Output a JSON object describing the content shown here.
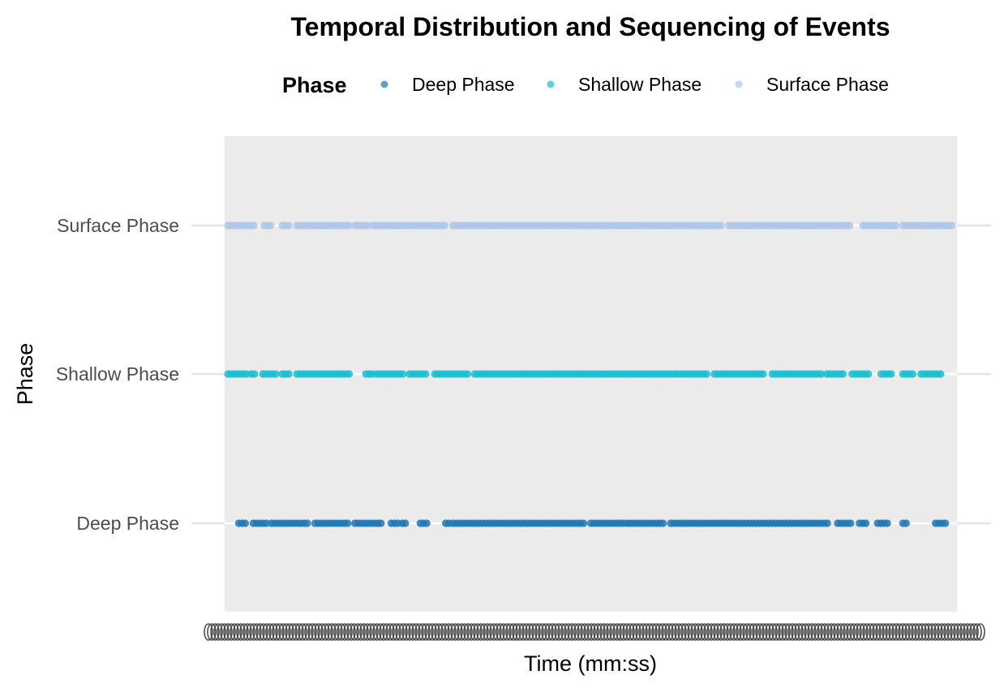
{
  "chart_data": {
    "type": "scatter",
    "title": "Temporal Distribution and Sequencing of Events",
    "xlabel": "Time (mm:ss)",
    "ylabel": "Phase",
    "legend": {
      "title": "Phase",
      "position": "top",
      "entries": [
        "Deep Phase",
        "Shallow Phase",
        "Surface Phase"
      ]
    },
    "categories": [
      "Deep Phase",
      "Shallow Phase",
      "Surface Phase"
    ],
    "x_domain": [
      0,
      1
    ],
    "x_ticks_note": "tick labels overplotted and illegible",
    "grid": "horizontal major lines",
    "series": [
      {
        "name": "Deep Phase",
        "color": "#1f77b4",
        "category": "Deep Phase",
        "runs": [
          [
            0.015,
            0.028
          ],
          [
            0.035,
            0.055
          ],
          [
            0.06,
            0.11
          ],
          [
            0.12,
            0.165
          ],
          [
            0.175,
            0.215
          ],
          [
            0.225,
            0.235
          ],
          [
            0.24,
            0.245
          ],
          [
            0.265,
            0.275
          ],
          [
            0.3,
            0.305
          ],
          [
            0.31,
            0.49
          ],
          [
            0.5,
            0.545
          ],
          [
            0.55,
            0.6
          ],
          [
            0.61,
            0.83
          ],
          [
            0.84,
            0.86
          ],
          [
            0.87,
            0.88
          ],
          [
            0.895,
            0.91
          ],
          [
            0.93,
            0.935
          ],
          [
            0.975,
            0.99
          ]
        ]
      },
      {
        "name": "Shallow Phase",
        "color": "#17becf",
        "category": "Shallow Phase",
        "runs": [
          [
            0.0,
            0.01
          ],
          [
            0.012,
            0.028
          ],
          [
            0.032,
            0.04
          ],
          [
            0.048,
            0.068
          ],
          [
            0.075,
            0.085
          ],
          [
            0.095,
            0.17
          ],
          [
            0.19,
            0.2
          ],
          [
            0.205,
            0.245
          ],
          [
            0.25,
            0.275
          ],
          [
            0.285,
            0.33
          ],
          [
            0.34,
            0.66
          ],
          [
            0.67,
            0.74
          ],
          [
            0.75,
            0.82
          ],
          [
            0.825,
            0.85
          ],
          [
            0.86,
            0.885
          ],
          [
            0.9,
            0.9
          ],
          [
            0.905,
            0.915
          ],
          [
            0.93,
            0.945
          ],
          [
            0.955,
            0.985
          ]
        ]
      },
      {
        "name": "Surface Phase",
        "color": "#aec7e8",
        "category": "Surface Phase",
        "runs": [
          [
            0.0,
            0.04
          ],
          [
            0.05,
            0.06
          ],
          [
            0.075,
            0.085
          ],
          [
            0.095,
            0.17
          ],
          [
            0.175,
            0.195
          ],
          [
            0.2,
            0.3
          ],
          [
            0.31,
            0.36
          ],
          [
            0.36,
            0.68
          ],
          [
            0.69,
            0.86
          ],
          [
            0.875,
            0.92
          ],
          [
            0.93,
            1.0
          ]
        ]
      }
    ]
  }
}
